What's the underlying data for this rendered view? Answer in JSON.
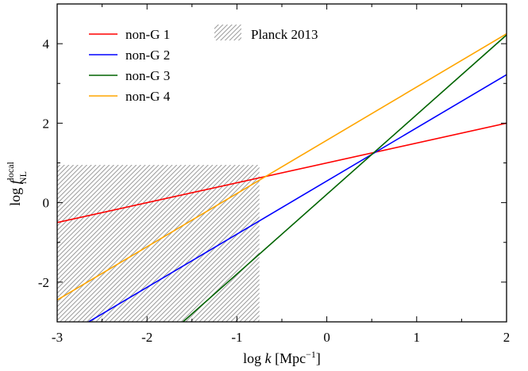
{
  "chart_data": {
    "type": "line",
    "xlabel": {
      "prefix": "log ",
      "var": "k",
      "unit_open": " [Mpc",
      "unit_sup": "−1",
      "unit_close": "]"
    },
    "ylabel": {
      "prefix": "log ",
      "var": "f",
      "sup": "local",
      "sub": "NL"
    },
    "xlim": [
      -3,
      2
    ],
    "ylim": [
      -3,
      5
    ],
    "xticks": [
      -3,
      -2,
      -1,
      0,
      1,
      2
    ],
    "yticks": [
      -2,
      0,
      2,
      4
    ],
    "xtick_labels": [
      "-3",
      "-2",
      "-1",
      "0",
      "1",
      "2"
    ],
    "ytick_labels": [
      "-2",
      "0",
      "2",
      "4"
    ],
    "grid": false,
    "legend_position": "top-left",
    "shaded_region": {
      "label": "Planck 2013",
      "x": [
        -3,
        -0.75
      ],
      "y": [
        -3,
        0.95
      ],
      "color": "#9a9a9a",
      "pattern": "diagonal-hatch"
    },
    "series": [
      {
        "name": "non-G 1",
        "color": "#ff0000",
        "x": [
          -3,
          2
        ],
        "y": [
          -0.5,
          2.0
        ]
      },
      {
        "name": "non-G 2",
        "color": "#0000ff",
        "x": [
          -2.65,
          2
        ],
        "y": [
          -3.0,
          3.22
        ]
      },
      {
        "name": "non-G 3",
        "color": "#006400",
        "x": [
          -1.6,
          2
        ],
        "y": [
          -3.0,
          4.22
        ]
      },
      {
        "name": "non-G 4",
        "color": "#ffa500",
        "x": [
          -3,
          2
        ],
        "y": [
          -2.45,
          4.25
        ]
      }
    ]
  }
}
